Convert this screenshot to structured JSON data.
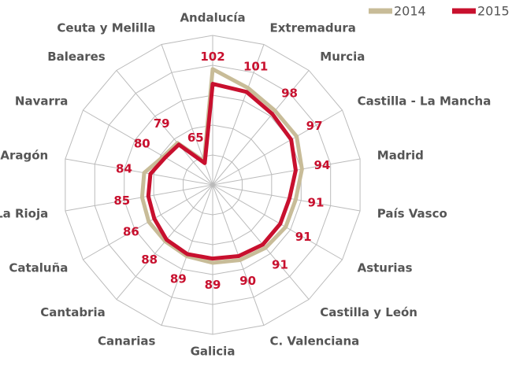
{
  "chart_data": {
    "type": "radar",
    "categories": [
      "Andalucía",
      "Extremadura",
      "Murcia",
      "Castilla - La Mancha",
      "Madrid",
      "País Vasco",
      "Asturias",
      "Castilla y León",
      "C. Valenciana",
      "Galicia",
      "Canarias",
      "Cantabria",
      "Cataluña",
      "La Rioja",
      "Aragón",
      "Navarra",
      "Baleares",
      "Ceuta y Melilla"
    ],
    "series": [
      {
        "name": "2014",
        "color": "#c8bc98",
        "values": [
          109,
          103,
          100,
          100,
          97,
          94,
          94,
          93,
          92,
          91,
          90,
          89,
          89,
          88,
          87,
          81,
          80,
          66
        ]
      },
      {
        "name": "2015",
        "color": "#c8102e",
        "values": [
          102,
          101,
          98,
          97,
          94,
          91,
          91,
          91,
          90,
          89,
          89,
          88,
          86,
          85,
          84,
          80,
          79,
          65
        ],
        "data_labels": true
      }
    ],
    "rlim": [
      54,
      125
    ]
  }
}
